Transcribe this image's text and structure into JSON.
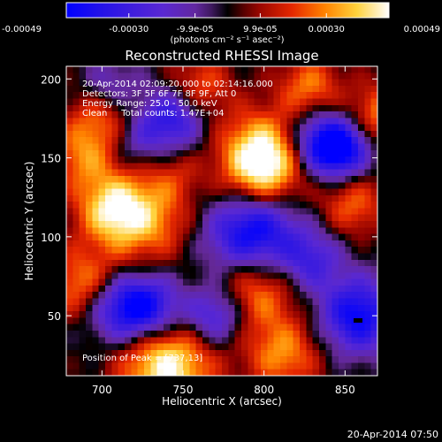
{
  "chart_data": {
    "type": "heatmap",
    "title": "Reconstructed RHESSI Image",
    "xlabel": "Heliocentric X (arcsec)",
    "ylabel": "Heliocentric Y (arcsec)",
    "xlim": [
      678,
      870
    ],
    "ylim": [
      12,
      208
    ],
    "x_ticks": [
      700,
      750,
      800,
      850
    ],
    "y_ticks": [
      50,
      100,
      150,
      200
    ],
    "colorbar": {
      "min": -0.00049,
      "max": 0.00049,
      "tick_labels": [
        "-0.00049",
        "-0.00030",
        "-9.9e-05",
        "9.9e-05",
        "0.00030",
        "0.00049"
      ],
      "units": "(photons cm⁻² s⁻¹ asec⁻²)"
    },
    "annotations": [
      "20-Apr-2014 02:09:20.000 to 02:14:16.000",
      "Detectors: 3F 5F 6F 7F 8F 9F, Att 0",
      "Energy Range: 25.0 - 50.0 keV",
      "Clean     Total counts: 1.47E+04"
    ],
    "peak_label": "Position of Peak = [737,13]",
    "peak_marker": {
      "x": 858,
      "y": 47
    },
    "sources": [
      {
        "x": 740,
        "y": 18,
        "value": 0.00049,
        "radius": 20
      },
      {
        "x": 798,
        "y": 154,
        "value": 0.00042,
        "radius": 18
      },
      {
        "x": 800,
        "y": 140,
        "value": 0.00025,
        "radius": 16
      },
      {
        "x": 725,
        "y": 112,
        "value": 0.00035,
        "radius": 20
      },
      {
        "x": 705,
        "y": 118,
        "value": 0.0003,
        "radius": 15
      },
      {
        "x": 688,
        "y": 70,
        "value": 0.0003,
        "radius": 16
      },
      {
        "x": 688,
        "y": 150,
        "value": 0.00025,
        "radius": 15
      },
      {
        "x": 700,
        "y": 175,
        "value": 0.00025,
        "radius": 15
      },
      {
        "x": 760,
        "y": 195,
        "value": 0.00025,
        "radius": 14
      },
      {
        "x": 828,
        "y": 195,
        "value": 0.00028,
        "radius": 14
      },
      {
        "x": 872,
        "y": 178,
        "value": 0.00028,
        "radius": 14
      },
      {
        "x": 855,
        "y": 120,
        "value": 0.00025,
        "radius": 14
      },
      {
        "x": 795,
        "y": 65,
        "value": 0.0003,
        "radius": 18
      },
      {
        "x": 812,
        "y": 25,
        "value": 0.0003,
        "radius": 16
      },
      {
        "x": 745,
        "y": 140,
        "value": 0.00012,
        "radius": 12
      },
      {
        "x": 743,
        "y": 175,
        "value": -0.00038,
        "radius": 14
      },
      {
        "x": 705,
        "y": 195,
        "value": -0.0002,
        "radius": 12
      },
      {
        "x": 835,
        "y": 160,
        "value": -0.0004,
        "radius": 14
      },
      {
        "x": 848,
        "y": 155,
        "value": -0.00042,
        "radius": 12
      },
      {
        "x": 828,
        "y": 85,
        "value": -0.0003,
        "radius": 14
      },
      {
        "x": 858,
        "y": 50,
        "value": -0.00048,
        "radius": 16
      },
      {
        "x": 712,
        "y": 55,
        "value": -0.0004,
        "radius": 15
      },
      {
        "x": 730,
        "y": 55,
        "value": -0.00035,
        "radius": 14
      },
      {
        "x": 770,
        "y": 50,
        "value": -0.00035,
        "radius": 13
      },
      {
        "x": 785,
        "y": 100,
        "value": -0.0003,
        "radius": 18
      },
      {
        "x": 800,
        "y": 105,
        "value": -0.00026,
        "radius": 16
      },
      {
        "x": 720,
        "y": 160,
        "value": -0.00018,
        "radius": 12
      }
    ]
  },
  "footer": {
    "timestamp": "20-Apr-2014 07:50"
  }
}
